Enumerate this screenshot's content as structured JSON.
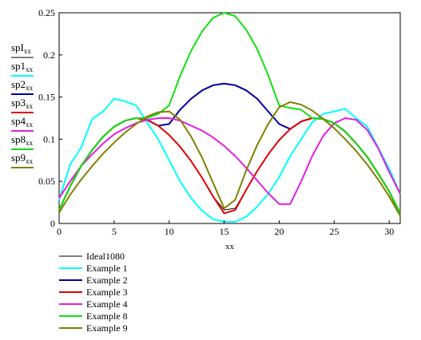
{
  "chart_data": {
    "type": "line",
    "xlabel": "xx",
    "xlim": [
      0,
      31
    ],
    "ylim": [
      0,
      0.25
    ],
    "x_ticks": [
      0,
      5,
      10,
      15,
      20,
      25,
      30
    ],
    "y_ticks": [
      0,
      0.05,
      0.1,
      0.15,
      0.2,
      0.25
    ],
    "y_tick_labels": [
      "0",
      "0.05",
      "0.1",
      "0.15",
      "0.2",
      "0.25"
    ],
    "grid": false,
    "legend_position": "bottom-left",
    "y_axis_vars": [
      {
        "main": "spI",
        "sub": "xx",
        "color": "#000000"
      },
      {
        "main": "sp1",
        "sub": "xx",
        "color": "#00ffff"
      },
      {
        "main": "sp2",
        "sub": "xx",
        "color": "#0000a0"
      },
      {
        "main": "sp3",
        "sub": "xx",
        "color": "#e00000"
      },
      {
        "main": "sp4",
        "sub": "xx",
        "color": "#e020e0"
      },
      {
        "main": "sp8",
        "sub": "xx",
        "color": "#10e010"
      },
      {
        "main": "sp9",
        "sub": "xx",
        "color": "#808000"
      }
    ],
    "series": [
      {
        "name": "Ideal1080",
        "color": "#000000",
        "x": [
          0,
          1,
          2,
          3,
          4,
          5,
          6,
          7,
          8,
          9,
          10,
          11,
          12,
          13,
          14,
          15,
          16,
          17,
          18,
          19,
          20,
          21,
          22,
          23,
          24,
          25,
          26,
          27,
          28,
          29,
          30,
          31
        ],
        "y": [
          0.016,
          0.044,
          0.068,
          0.087,
          0.103,
          0.115,
          0.122,
          0.125,
          0.123,
          0.116,
          0.105,
          0.091,
          0.074,
          0.054,
          0.032,
          0.016,
          0.018,
          0.04,
          0.062,
          0.082,
          0.099,
          0.112,
          0.121,
          0.125,
          0.124,
          0.119,
          0.109,
          0.095,
          0.079,
          0.059,
          0.038,
          0.012
        ]
      },
      {
        "name": "Example 1",
        "color": "#00ffff",
        "x": [
          0,
          1,
          2,
          3,
          4,
          5,
          6,
          7,
          8,
          9,
          10,
          11,
          12,
          13,
          14,
          15,
          16,
          17,
          18,
          19,
          20,
          21,
          22,
          23,
          24,
          25,
          26,
          27,
          28,
          29,
          30,
          31
        ],
        "y": [
          0.028,
          0.07,
          0.09,
          0.124,
          0.133,
          0.148,
          0.145,
          0.14,
          0.12,
          0.1,
          0.075,
          0.05,
          0.03,
          0.015,
          0.005,
          0.002,
          0.002,
          0.008,
          0.02,
          0.035,
          0.055,
          0.08,
          0.1,
          0.12,
          0.13,
          0.133,
          0.136,
          0.125,
          0.115,
          0.09,
          0.065,
          0.035
        ]
      },
      {
        "name": "Example 2",
        "color": "#0000a0",
        "x": [
          0,
          1,
          2,
          3,
          4,
          5,
          6,
          7,
          8,
          9,
          10,
          11,
          12,
          13,
          14,
          15,
          16,
          17,
          18,
          19,
          20,
          21,
          22,
          23,
          24,
          25,
          26,
          27,
          28,
          29,
          30,
          31
        ],
        "y": [
          0.016,
          0.044,
          0.068,
          0.087,
          0.103,
          0.115,
          0.122,
          0.125,
          0.123,
          0.116,
          0.118,
          0.135,
          0.148,
          0.158,
          0.164,
          0.166,
          0.164,
          0.158,
          0.148,
          0.133,
          0.118,
          0.112,
          0.121,
          0.125,
          0.124,
          0.119,
          0.109,
          0.095,
          0.079,
          0.059,
          0.038,
          0.012
        ]
      },
      {
        "name": "Example 3",
        "color": "#e00000",
        "x": [
          0,
          1,
          2,
          3,
          4,
          5,
          6,
          7,
          8,
          9,
          10,
          11,
          12,
          13,
          14,
          15,
          16,
          17,
          18,
          19,
          20,
          21,
          22,
          23,
          24,
          25,
          26,
          27,
          28,
          29,
          30,
          31
        ],
        "y": [
          0.016,
          0.044,
          0.068,
          0.087,
          0.103,
          0.115,
          0.122,
          0.125,
          0.123,
          0.116,
          0.105,
          0.091,
          0.074,
          0.054,
          0.032,
          0.012,
          0.016,
          0.04,
          0.062,
          0.082,
          0.099,
          0.112,
          0.121,
          0.125,
          0.124,
          0.119,
          0.109,
          0.095,
          0.079,
          0.059,
          0.038,
          0.01
        ]
      },
      {
        "name": "Example 4",
        "color": "#e020e0",
        "x": [
          0,
          1,
          2,
          3,
          4,
          5,
          6,
          7,
          8,
          9,
          10,
          11,
          12,
          13,
          14,
          15,
          16,
          17,
          18,
          19,
          20,
          21,
          22,
          23,
          24,
          25,
          26,
          27,
          28,
          29,
          30,
          31
        ],
        "y": [
          0.03,
          0.05,
          0.068,
          0.082,
          0.095,
          0.106,
          0.113,
          0.119,
          0.123,
          0.125,
          0.125,
          0.122,
          0.116,
          0.11,
          0.102,
          0.092,
          0.08,
          0.066,
          0.051,
          0.036,
          0.023,
          0.023,
          0.05,
          0.08,
          0.104,
          0.119,
          0.125,
          0.123,
          0.111,
          0.089,
          0.061,
          0.035
        ]
      },
      {
        "name": "Example 8",
        "color": "#10e010",
        "x": [
          0,
          1,
          2,
          3,
          4,
          5,
          6,
          7,
          8,
          9,
          10,
          11,
          12,
          13,
          14,
          15,
          16,
          17,
          18,
          19,
          20,
          21,
          22,
          23,
          24,
          25,
          26,
          27,
          28,
          29,
          30,
          31
        ],
        "y": [
          0.016,
          0.044,
          0.068,
          0.087,
          0.103,
          0.115,
          0.122,
          0.125,
          0.125,
          0.13,
          0.14,
          0.175,
          0.205,
          0.228,
          0.244,
          0.25,
          0.246,
          0.23,
          0.207,
          0.176,
          0.14,
          0.137,
          0.135,
          0.125,
          0.124,
          0.119,
          0.109,
          0.095,
          0.079,
          0.059,
          0.038,
          0.012
        ]
      },
      {
        "name": "Example 9",
        "color": "#808000",
        "x": [
          0,
          1,
          2,
          3,
          4,
          5,
          6,
          7,
          8,
          9,
          10,
          11,
          12,
          13,
          14,
          15,
          16,
          17,
          18,
          19,
          20,
          21,
          22,
          23,
          24,
          25,
          26,
          27,
          28,
          29,
          30,
          31
        ],
        "y": [
          0.013,
          0.034,
          0.052,
          0.068,
          0.083,
          0.096,
          0.108,
          0.118,
          0.127,
          0.132,
          0.133,
          0.123,
          0.103,
          0.078,
          0.048,
          0.018,
          0.028,
          0.063,
          0.093,
          0.118,
          0.138,
          0.144,
          0.141,
          0.134,
          0.124,
          0.113,
          0.1,
          0.086,
          0.07,
          0.052,
          0.032,
          0.009
        ]
      }
    ]
  }
}
